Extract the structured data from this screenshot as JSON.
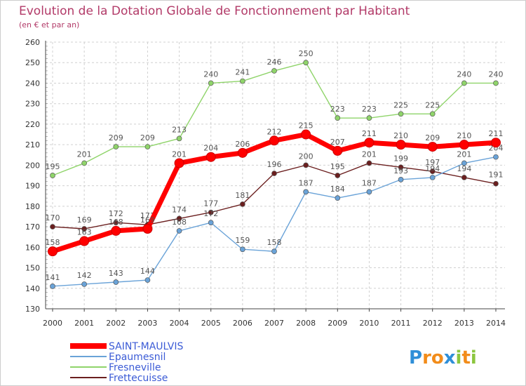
{
  "chart_data": {
    "type": "line",
    "title": "Evolution de la Dotation Globale de Fonctionnement par Habitant",
    "subtitle": "(en € et par an)",
    "x": [
      "2000",
      "2001",
      "2002",
      "2003",
      "2004",
      "2005",
      "2006",
      "2007",
      "2008",
      "2009",
      "2010",
      "2011",
      "2012",
      "2013",
      "2014"
    ],
    "ylim": [
      130,
      260
    ],
    "yticks": [
      130,
      140,
      150,
      160,
      170,
      180,
      190,
      200,
      210,
      220,
      230,
      240,
      250,
      260
    ],
    "grid": true,
    "legend_position": "bottom-left",
    "series": [
      {
        "name": "SAINT-MAULVIS",
        "color": "#ff0000",
        "values": [
          158,
          163,
          168,
          169,
          201,
          204,
          206,
          212,
          215,
          207,
          211,
          210,
          209,
          210,
          211
        ]
      },
      {
        "name": "Epaumesnil",
        "color": "#6aa3d8",
        "values": [
          141,
          142,
          143,
          144,
          168,
          172,
          159,
          158,
          187,
          184,
          187,
          193,
          194,
          201,
          204
        ]
      },
      {
        "name": "Fresneville",
        "color": "#8fd46a",
        "values": [
          195,
          201,
          209,
          209,
          213,
          240,
          241,
          246,
          250,
          223,
          223,
          225,
          225,
          240,
          240
        ]
      },
      {
        "name": "Frettecuisse",
        "color": "#6b1f1f",
        "values": [
          170,
          169,
          172,
          171,
          174,
          177,
          181,
          196,
          200,
          195,
          201,
          199,
          197,
          194,
          191
        ]
      }
    ]
  },
  "brand": {
    "text": "Proxiti",
    "letters": [
      "P",
      "r",
      "o",
      "x",
      "i",
      "t",
      "i"
    ],
    "colors": [
      "#2f8fd8",
      "#f28c1a",
      "#f28c1a",
      "#2f8fd8",
      "#8cc63f",
      "#f28c1a",
      "#8cc63f"
    ]
  }
}
